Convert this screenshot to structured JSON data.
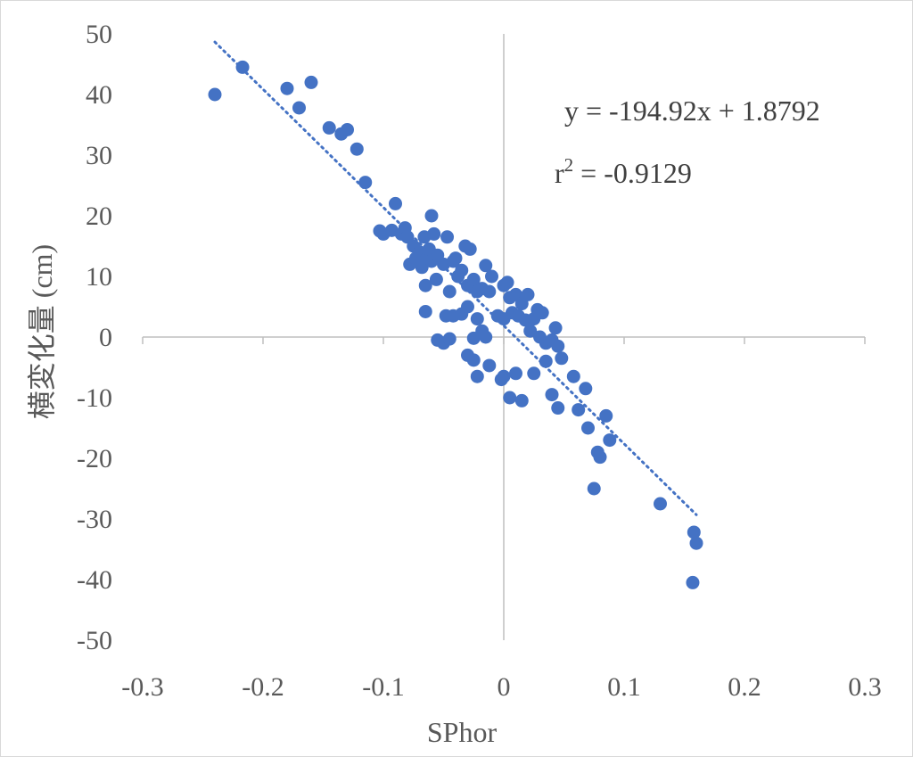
{
  "chart_data": {
    "type": "scatter",
    "title": "",
    "xlabel": "SPhor",
    "ylabel": "横変化量 (cm)",
    "xlim": [
      -0.3,
      0.3
    ],
    "ylim": [
      -50,
      50
    ],
    "x_ticks": [
      "-0.3",
      "-0.2",
      "-0.1",
      "0",
      "0.1",
      "0.2",
      "0.3"
    ],
    "y_ticks": [
      "50",
      "40",
      "30",
      "20",
      "10",
      "0",
      "-10",
      "-20",
      "-30",
      "-40",
      "-50"
    ],
    "grid": false,
    "legend": "none",
    "marker_color": "#4472C4",
    "trendline": {
      "slope": -194.92,
      "intercept": 1.8792,
      "x_range": [
        -0.24,
        0.16
      ],
      "style": "dotted",
      "equation": "y = -194.92x + 1.8792",
      "r2_prefix": "r",
      "r2_sup": "2",
      "r2_value": " = -0.9129"
    },
    "series": [
      {
        "points": [
          [
            -0.24,
            40.0
          ],
          [
            -0.217,
            44.5
          ],
          [
            -0.18,
            41.0
          ],
          [
            -0.16,
            42.0
          ],
          [
            -0.17,
            37.8
          ],
          [
            -0.145,
            34.5
          ],
          [
            -0.135,
            33.5
          ],
          [
            -0.13,
            34.2
          ],
          [
            -0.122,
            31.0
          ],
          [
            -0.115,
            25.5
          ],
          [
            -0.103,
            17.5
          ],
          [
            -0.1,
            17.0
          ],
          [
            -0.093,
            17.6
          ],
          [
            -0.09,
            22.0
          ],
          [
            -0.085,
            17.0
          ],
          [
            -0.082,
            18.0
          ],
          [
            -0.08,
            16.5
          ],
          [
            -0.078,
            12.0
          ],
          [
            -0.075,
            15.0
          ],
          [
            -0.073,
            13.0
          ],
          [
            -0.07,
            14.0
          ],
          [
            -0.068,
            11.5
          ],
          [
            -0.066,
            16.5
          ],
          [
            -0.064,
            13.0
          ],
          [
            -0.062,
            14.5
          ],
          [
            -0.06,
            20.0
          ],
          [
            -0.058,
            17.0
          ],
          [
            -0.056,
            9.5
          ],
          [
            -0.06,
            12.5
          ],
          [
            -0.055,
            13.5
          ],
          [
            -0.05,
            12.0
          ],
          [
            -0.047,
            16.5
          ],
          [
            -0.045,
            7.5
          ],
          [
            -0.042,
            12.5
          ],
          [
            -0.04,
            13.0
          ],
          [
            -0.038,
            10.0
          ],
          [
            -0.035,
            11.0
          ],
          [
            -0.032,
            15.0
          ],
          [
            -0.03,
            8.5
          ],
          [
            -0.028,
            14.5
          ],
          [
            -0.025,
            9.5
          ],
          [
            -0.022,
            7.5
          ],
          [
            -0.018,
            8.0
          ],
          [
            -0.015,
            11.8
          ],
          [
            -0.012,
            7.5
          ],
          [
            -0.01,
            10.0
          ],
          [
            -0.065,
            8.5
          ],
          [
            -0.065,
            4.2
          ],
          [
            -0.055,
            -0.5
          ],
          [
            -0.05,
            -1.0
          ],
          [
            -0.048,
            3.5
          ],
          [
            -0.045,
            -0.3
          ],
          [
            -0.042,
            3.5
          ],
          [
            -0.035,
            3.8
          ],
          [
            -0.03,
            5.0
          ],
          [
            -0.025,
            -0.2
          ],
          [
            -0.022,
            3.0
          ],
          [
            -0.018,
            1.0
          ],
          [
            -0.015,
            0.0
          ],
          [
            -0.03,
            -3.0
          ],
          [
            -0.025,
            -3.8
          ],
          [
            -0.022,
            -6.5
          ],
          [
            -0.012,
            -4.7
          ],
          [
            -0.005,
            3.5
          ],
          [
            0.0,
            8.5
          ],
          [
            0.003,
            9.0
          ],
          [
            0.005,
            6.5
          ],
          [
            0.007,
            4.0
          ],
          [
            0.01,
            7.0
          ],
          [
            0.012,
            3.5
          ],
          [
            0.015,
            5.5
          ],
          [
            0.018,
            2.8
          ],
          [
            0.02,
            7.0
          ],
          [
            0.022,
            1.0
          ],
          [
            0.025,
            3.0
          ],
          [
            0.028,
            4.5
          ],
          [
            0.032,
            4.0
          ],
          [
            0.035,
            -1.0
          ],
          [
            0.04,
            -0.5
          ],
          [
            0.043,
            1.5
          ],
          [
            0.045,
            -1.5
          ],
          [
            0.03,
            0.0
          ],
          [
            0.0,
            3.0
          ],
          [
            -0.002,
            -7.0
          ],
          [
            0.0,
            -6.5
          ],
          [
            0.005,
            -10.0
          ],
          [
            0.01,
            -6.0
          ],
          [
            0.015,
            -10.5
          ],
          [
            0.025,
            -6.0
          ],
          [
            0.035,
            -4.0
          ],
          [
            0.04,
            -9.5
          ],
          [
            0.045,
            -11.7
          ],
          [
            0.048,
            -3.5
          ],
          [
            0.058,
            -6.5
          ],
          [
            0.062,
            -12.0
          ],
          [
            0.068,
            -8.5
          ],
          [
            0.07,
            -15.0
          ],
          [
            0.075,
            -25.0
          ],
          [
            0.078,
            -19.0
          ],
          [
            0.08,
            -19.8
          ],
          [
            0.085,
            -13.0
          ],
          [
            0.088,
            -17.0
          ],
          [
            0.13,
            -27.5
          ],
          [
            0.157,
            -40.5
          ],
          [
            0.158,
            -32.2
          ],
          [
            0.16,
            -34.0
          ]
        ]
      }
    ]
  }
}
